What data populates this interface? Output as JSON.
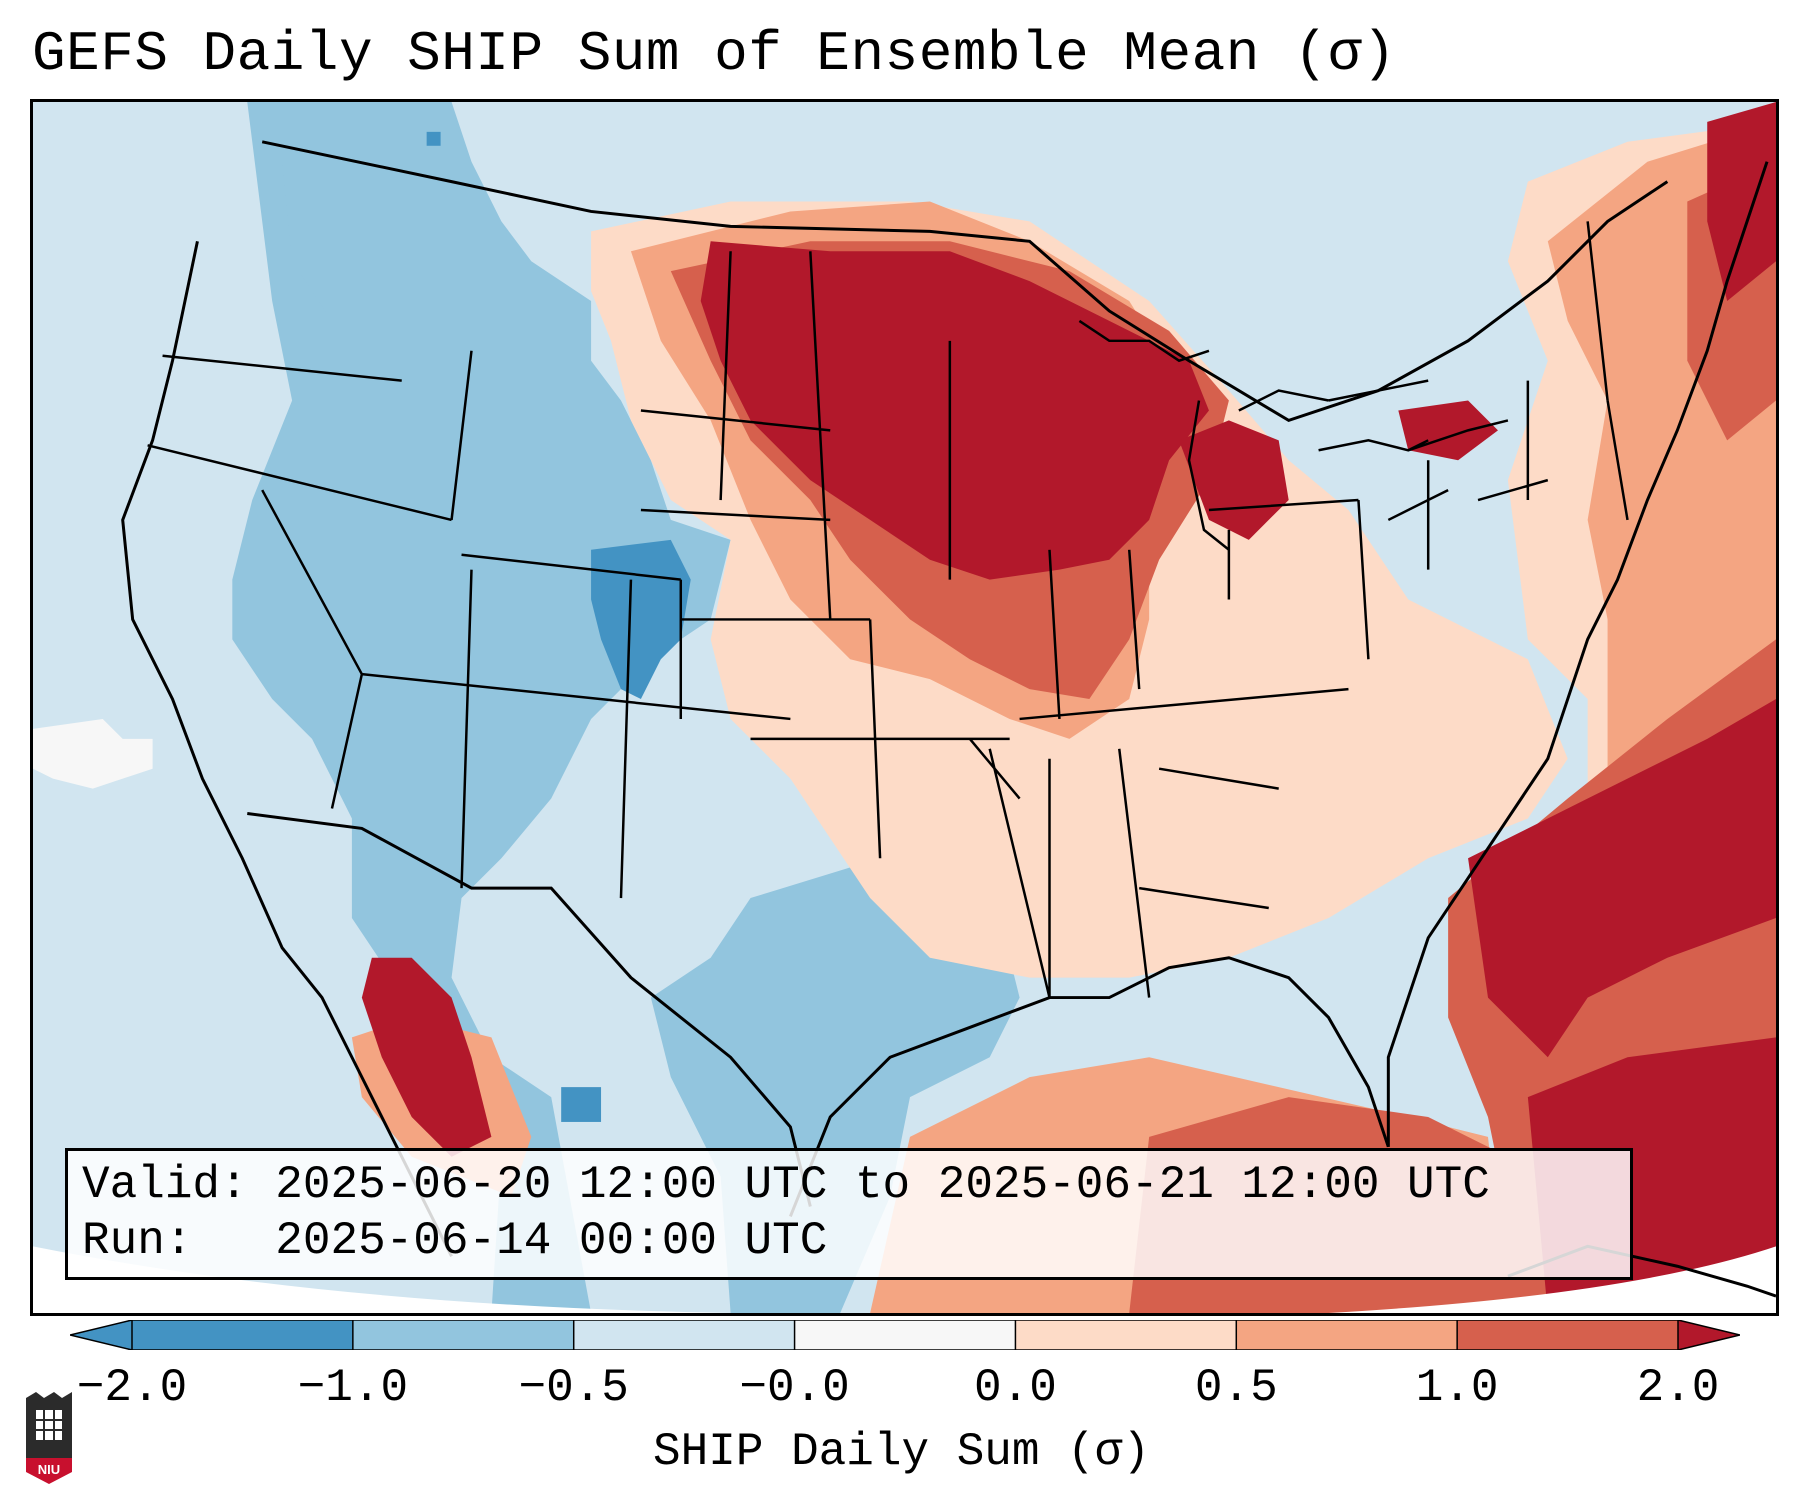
{
  "title": "GEFS Daily SHIP Sum of Ensemble Mean (σ)",
  "info": {
    "valid_label": "Valid:",
    "valid_value": "2025-06-20 12:00 UTC to 2025-06-21 12:00 UTC",
    "run_label": "Run:",
    "run_value": "2025-06-14 00:00 UTC"
  },
  "colorbar": {
    "label": "SHIP Daily Sum (σ)",
    "ticks": [
      "−2.0",
      "−1.0",
      "−0.5",
      "−0.0",
      "0.0",
      "0.5",
      "1.0",
      "2.0"
    ],
    "colors": [
      "#4393c3",
      "#92c5de",
      "#d1e5f0",
      "#f7f7f7",
      "#fddbc7",
      "#f4a582",
      "#d6604d",
      "#b2182b"
    ],
    "extend": "both"
  },
  "map": {
    "region": "Contiguous United States",
    "colors": {
      "strong_neg": "#4393c3",
      "neg": "#92c5de",
      "weak_neg": "#d1e5f0",
      "neutral": "#f7f7f7",
      "weak_pos": "#fddbc7",
      "pos": "#f4a582",
      "strong_pos": "#d6604d",
      "extreme_pos": "#b2182b"
    }
  },
  "logo": {
    "text": "NIU",
    "color": "#c8102e"
  }
}
